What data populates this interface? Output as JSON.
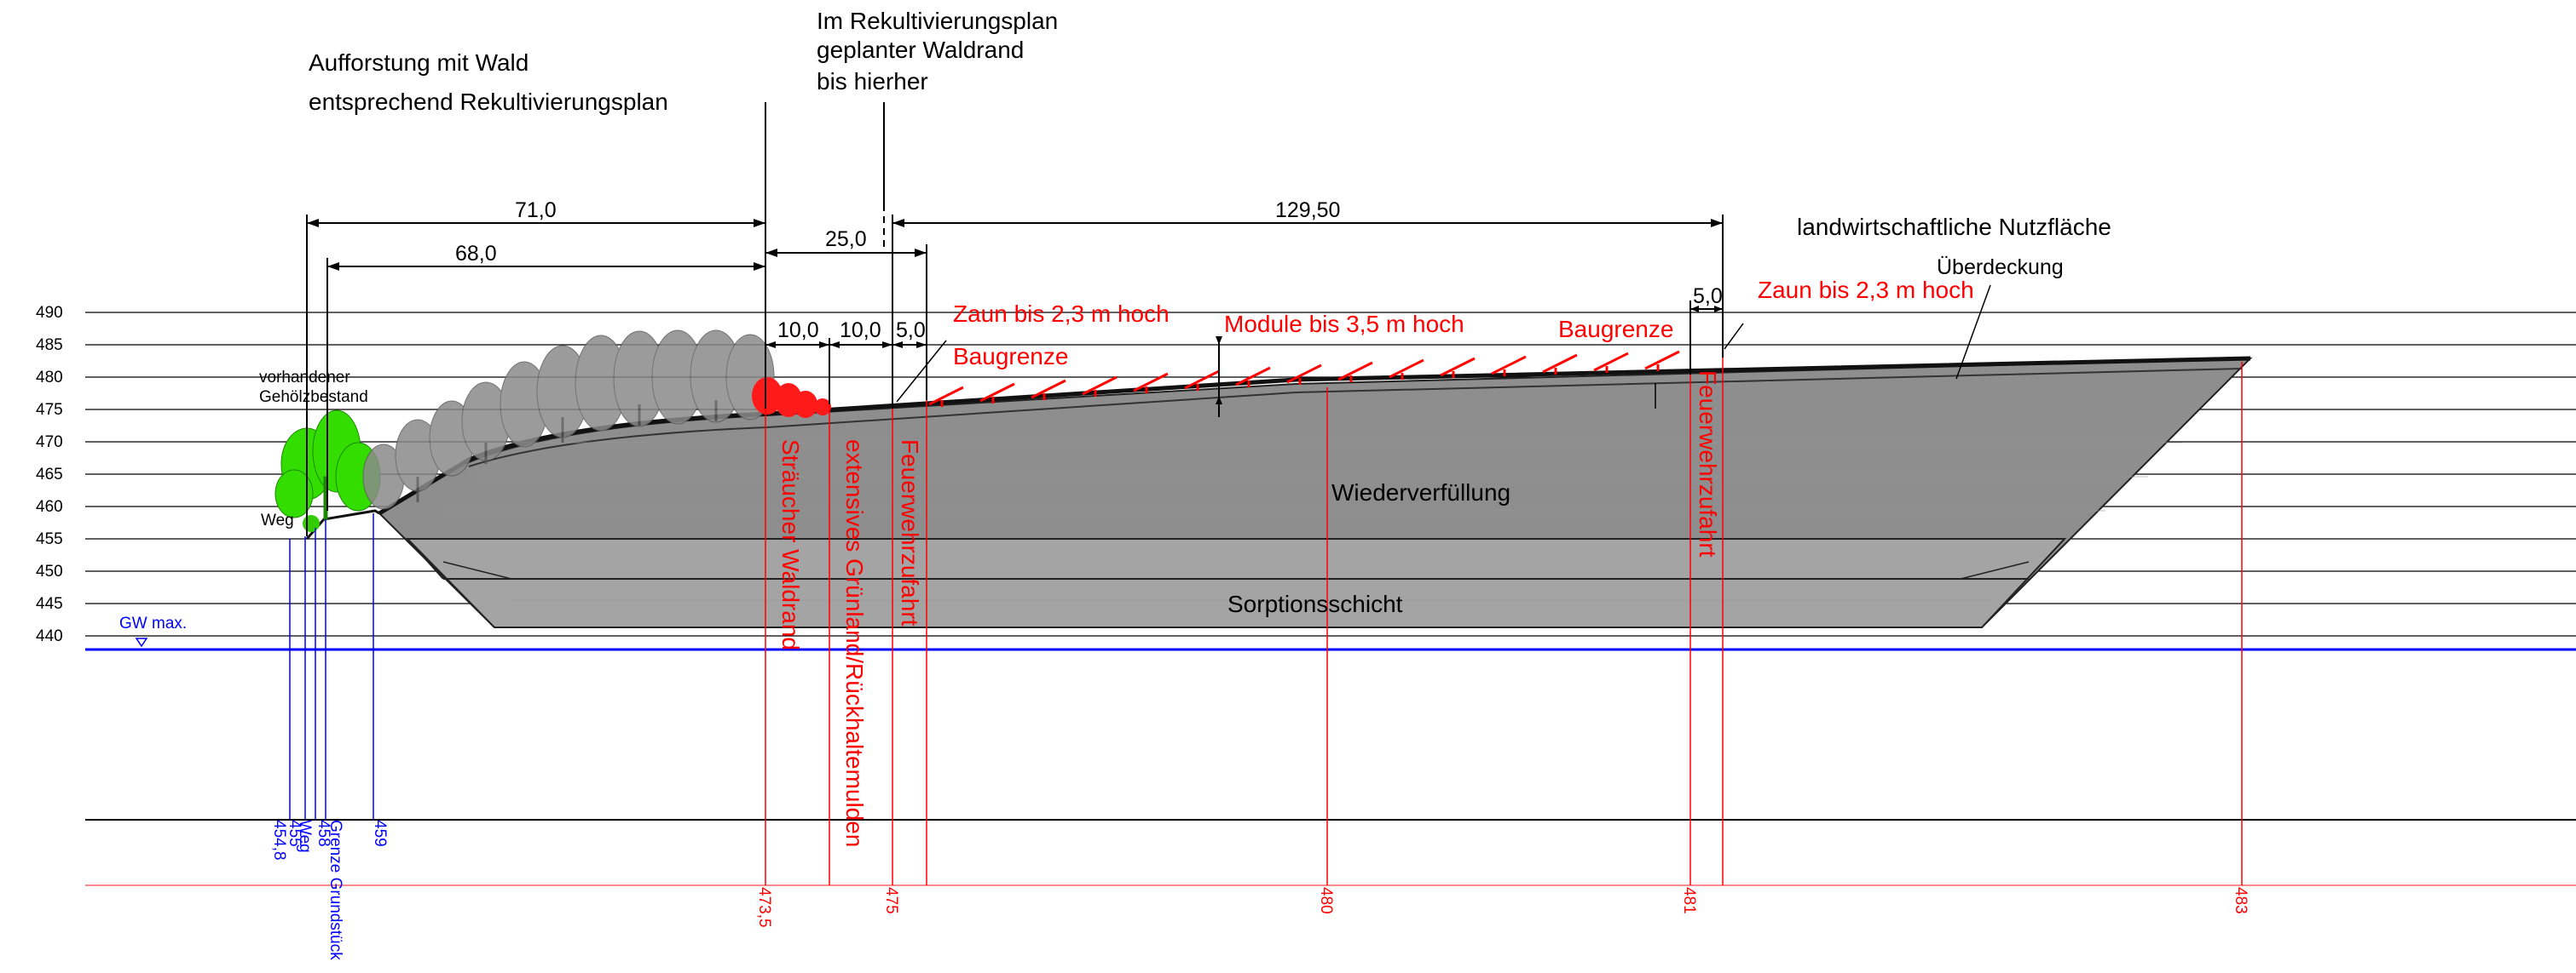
{
  "elevations": [
    "490",
    "485",
    "480",
    "475",
    "470",
    "465",
    "460",
    "455",
    "450",
    "445",
    "440"
  ],
  "gw_label": "GW max.",
  "headings": {
    "aufforstung_1": "Aufforstung mit Wald",
    "aufforstung_2": "entsprechend Rekultivierungsplan",
    "rekult_1": "Im Rekultivierungsplan",
    "rekult_2": "geplanter Waldrand",
    "rekult_3": "bis hierher",
    "landwirtschaft": "landwirtschaftliche Nutzfläche",
    "ueberdeckung": "Überdeckung"
  },
  "dimensions": {
    "d71": "71,0",
    "d68": "68,0",
    "d25": "25,0",
    "d129": "129,50",
    "d10a": "10,0",
    "d10b": "10,0",
    "d5a": "5,0",
    "d5b": "5,0"
  },
  "red_labels": {
    "zaun_left": "Zaun bis 2,3 m hoch",
    "baugrenze_left": "Baugrenze",
    "module": "Module bis 3,5 m hoch",
    "baugrenze_right": "Baugrenze",
    "zaun_right": "Zaun bis 2,3 m hoch",
    "straeucher": "Sträucher Waldrand",
    "extensiv": "extensives Grünland/Rückhaltemulden",
    "feuerwehr_left": "Feuerwehrzufahrt",
    "feuerwehr_right": "Feuerwehrzufahrt"
  },
  "labels": {
    "vorhandener_1": "vorhandener",
    "vorhandener_2": "Gehölzbestand",
    "weg": "Weg",
    "wiederverfuellung": "Wiederverfüllung",
    "sorptionsschicht": "Sorptionsschicht"
  },
  "bottom_red": [
    "473,5",
    "475",
    "480",
    "481",
    "483"
  ],
  "bottom_blue": {
    "b1": "454,8",
    "b2": "455",
    "b3": "Weg",
    "b4": "458",
    "b5": "Grenze Grundstück",
    "b6": "459"
  },
  "colors": {
    "fill_body": "#8e8e8e",
    "fill_band": "#a2a2a2",
    "trees_grey": "#8a8a8a",
    "trees_green": "#33dd00",
    "shrubs_red": "#ff1a1a",
    "annotation_red": "#ff0000",
    "annotation_blue": "#0000ff"
  }
}
